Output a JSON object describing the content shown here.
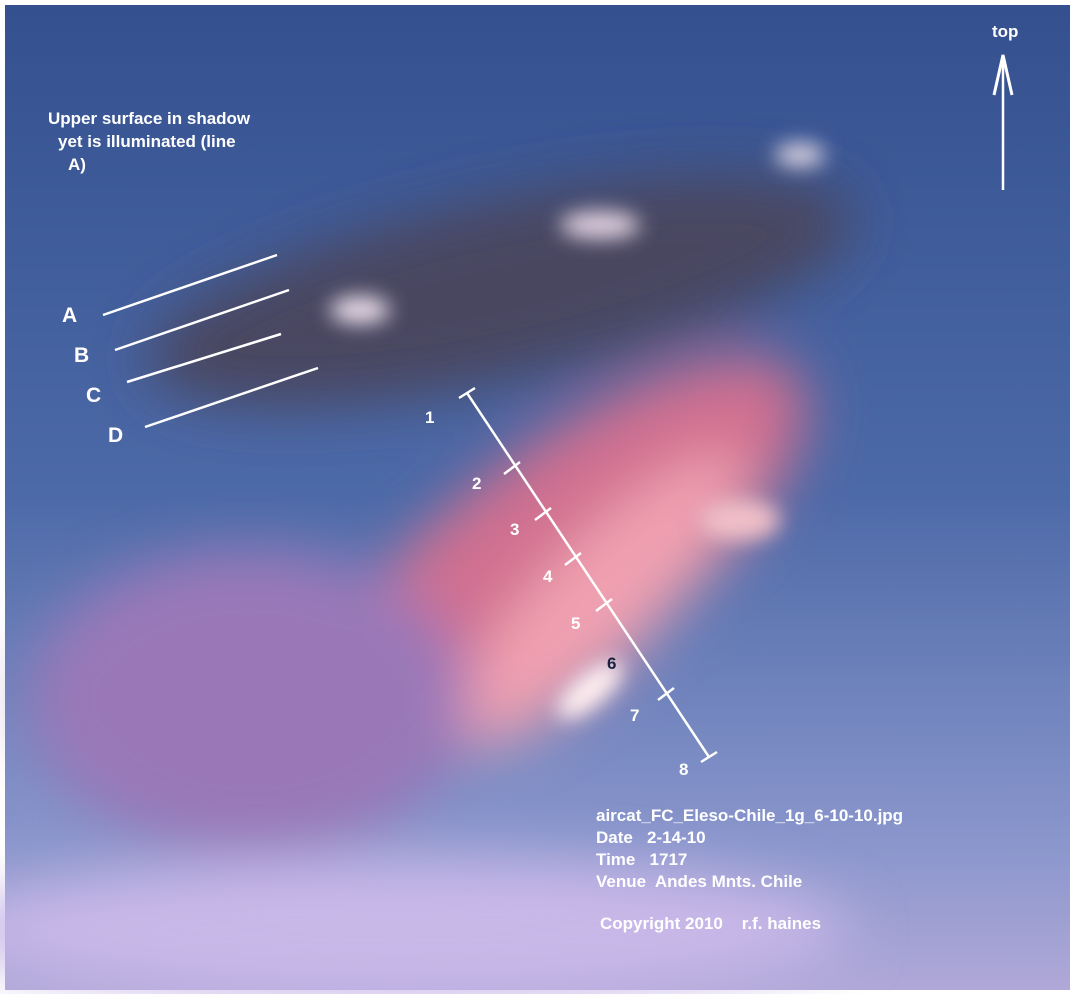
{
  "annotation": {
    "lines": [
      "Upper surface in shadow",
      "yet is illuminated (line",
      "A)"
    ]
  },
  "orientation_label": "top",
  "line_labels": [
    "A",
    "B",
    "C",
    "D"
  ],
  "scale_labels": [
    "1",
    "2",
    "3",
    "4",
    "5",
    "6",
    "7",
    "8"
  ],
  "caption": {
    "lines": [
      "aircat_FC_Eleso-Chile_1g_6-10-10.jpg",
      "Date   2-14-10",
      "Time   1717",
      "Venue  Andes Mnts. Chile"
    ],
    "copyright": "Copyright 2010    r.f. haines"
  }
}
